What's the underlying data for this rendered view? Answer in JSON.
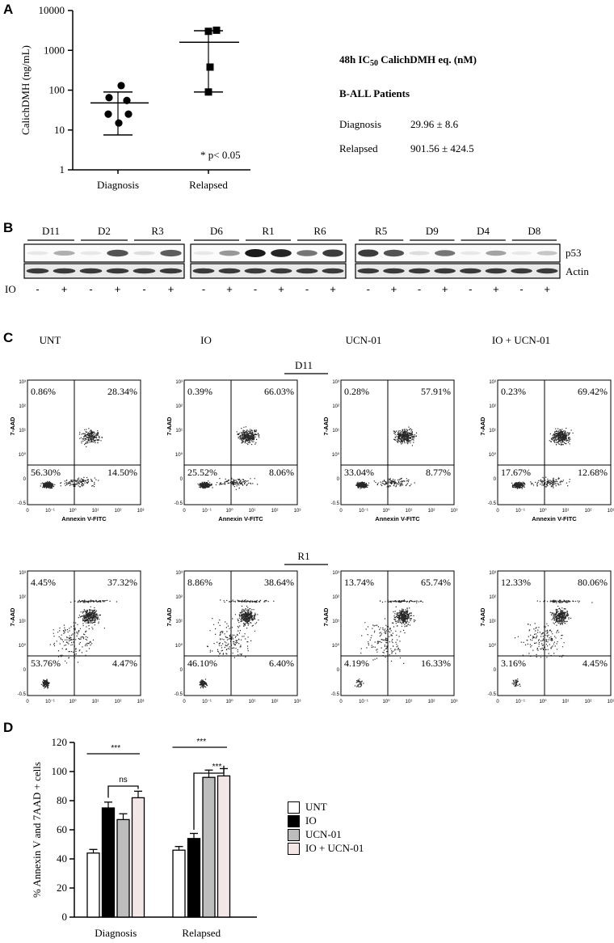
{
  "panels": {
    "A": "A",
    "B": "B",
    "C": "C",
    "D": "D"
  },
  "panelA": {
    "ylabel": "CalichDMH (ng/mL)",
    "yticks": [
      "1",
      "10",
      "100",
      "1000",
      "10000"
    ],
    "categories": [
      "Diagnosis",
      "Relapsed"
    ],
    "annotation": "* p< 0.05",
    "table": {
      "title_prefix": "48h IC",
      "title_sub": "50",
      "title_suffix": " CalichDMH eq. (nM)",
      "subtitle": "B-ALL Patients",
      "rows": [
        {
          "label": "Diagnosis",
          "value": "29.96 ± 8.6"
        },
        {
          "label": "Relapsed",
          "value": "901.56 ± 424.5"
        }
      ]
    }
  },
  "chart_data": [
    {
      "type": "scatter",
      "panel": "A",
      "ylabel": "CalichDMH (ng/mL)",
      "yscale": "log",
      "ylim": [
        1,
        10000
      ],
      "categories": [
        "Diagnosis",
        "Relapsed"
      ],
      "series": [
        {
          "name": "Diagnosis",
          "points": [
            130,
            65,
            55,
            25,
            25,
            15
          ],
          "mean": 48,
          "error_high": 90,
          "error_low": 7.5
        },
        {
          "name": "Relapsed",
          "points": [
            3200,
            3000,
            380,
            90
          ],
          "mean": 1600,
          "error_high": 3100,
          "error_low": 90
        }
      ]
    },
    {
      "type": "bar",
      "panel": "D",
      "ylabel": "% Annexin V and 7AAD + cells",
      "ylim": [
        0,
        120
      ],
      "yticks": [
        "0",
        "20",
        "40",
        "60",
        "80",
        "100",
        "120"
      ],
      "categories": [
        "Diagnosis",
        "Relapsed"
      ],
      "series": [
        {
          "name": "UNT",
          "color": "#ffffff",
          "values": [
            44,
            46
          ],
          "errors": [
            2.5,
            2.5
          ]
        },
        {
          "name": "IO",
          "color": "#000000",
          "values": [
            75,
            54
          ],
          "errors": [
            4,
            3.5
          ]
        },
        {
          "name": "UCN-01",
          "color": "#bdbdbd",
          "values": [
            67,
            96
          ],
          "errors": [
            4,
            5
          ]
        },
        {
          "name": "IO + UCN-01",
          "color": "#f2e6e6",
          "values": [
            82,
            97
          ],
          "errors": [
            4.5,
            5
          ]
        }
      ],
      "significance": [
        "***",
        "ns",
        "***",
        "***"
      ]
    }
  ],
  "panelB": {
    "groups": [
      {
        "samples": [
          "D11",
          "D2",
          "R3"
        ]
      },
      {
        "samples": [
          "D6",
          "R1",
          "R6"
        ]
      },
      {
        "samples": [
          "R5",
          "D9",
          "D4",
          "D8"
        ]
      }
    ],
    "row_labels": [
      "p53",
      "Actin"
    ],
    "io_label": "IO",
    "io_signs": [
      "-",
      "+"
    ],
    "p53_intensity": [
      [
        0.1,
        0.35,
        0.1,
        0.75,
        0.15,
        0.7
      ],
      [
        0.1,
        0.45,
        1.0,
        0.95,
        0.6,
        0.85
      ],
      [
        0.85,
        0.75,
        0.15,
        0.6,
        0.1,
        0.4,
        0.1,
        0.25
      ]
    ]
  },
  "panelC": {
    "conditions": [
      "UNT",
      "IO",
      "UCN-01",
      "IO + UCN-01"
    ],
    "sample_rows": [
      {
        "label": "D11",
        "quadrants": [
          [
            "0.86%",
            "28.34%",
            "56.30%",
            "14.50%"
          ],
          [
            "0.39%",
            "66.03%",
            "25.52%",
            "8.06%"
          ],
          [
            "0.28%",
            "57.91%",
            "33.04%",
            "8.77%"
          ],
          [
            "0.23%",
            "69.42%",
            "17.67%",
            "12.68%"
          ]
        ]
      },
      {
        "label": "R1",
        "quadrants": [
          [
            "4.45%",
            "37.32%",
            "53.76%",
            "4.47%"
          ],
          [
            "8.86%",
            "38.64%",
            "46.10%",
            "6.40%"
          ],
          [
            "13.74%",
            "65.74%",
            "4.19%",
            "16.33%"
          ],
          [
            "12.33%",
            "80.06%",
            "3.16%",
            "4.45%"
          ]
        ]
      }
    ],
    "xlabel": "Annexin V-FITC",
    "ylabel": "7-AAD",
    "xticks": [
      "0",
      "10⁻¹",
      "10⁰",
      "10¹",
      "10²",
      "10³"
    ],
    "yticks": [
      "10³",
      "10²",
      "10¹",
      "10⁰",
      "0",
      "-0.5"
    ]
  },
  "panelD": {
    "ylabel": "% Annexin V and 7AAD + cells",
    "legend": [
      "UNT",
      "IO",
      "UCN-01",
      "IO + UCN-01"
    ]
  }
}
